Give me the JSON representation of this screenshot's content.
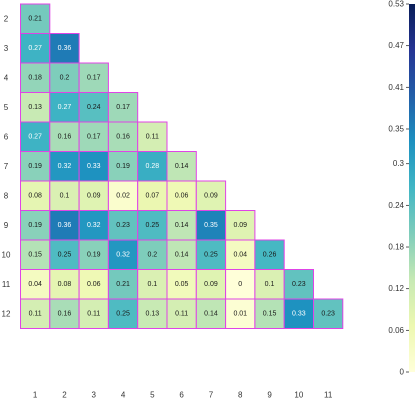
{
  "chart_data": {
    "type": "heatmap",
    "title": "",
    "xlabel": "",
    "ylabel": "",
    "x_categories": [
      "1",
      "2",
      "3",
      "4",
      "5",
      "6",
      "7",
      "8",
      "9",
      "10",
      "11"
    ],
    "y_categories": [
      "2",
      "3",
      "4",
      "5",
      "6",
      "7",
      "8",
      "9",
      "10",
      "11",
      "12"
    ],
    "rows": [
      {
        "y": "2",
        "values": [
          0.21
        ]
      },
      {
        "y": "3",
        "values": [
          0.27,
          0.36
        ]
      },
      {
        "y": "4",
        "values": [
          0.18,
          0.2,
          0.17
        ]
      },
      {
        "y": "5",
        "values": [
          0.13,
          0.27,
          0.24,
          0.17
        ]
      },
      {
        "y": "6",
        "values": [
          0.27,
          0.16,
          0.17,
          0.16,
          0.11
        ]
      },
      {
        "y": "7",
        "values": [
          0.19,
          0.32,
          0.33,
          0.19,
          0.28,
          0.14
        ]
      },
      {
        "y": "8",
        "values": [
          0.08,
          0.1,
          0.09,
          0.02,
          0.07,
          0.06,
          0.09
        ]
      },
      {
        "y": "9",
        "values": [
          0.19,
          0.36,
          0.32,
          0.23,
          0.25,
          0.14,
          0.35,
          0.09
        ]
      },
      {
        "y": "10",
        "values": [
          0.15,
          0.25,
          0.19,
          0.32,
          0.2,
          0.14,
          0.25,
          0.04,
          0.26
        ]
      },
      {
        "y": "11",
        "values": [
          0.04,
          0.08,
          0.06,
          0.21,
          0.1,
          0.05,
          0.09,
          0,
          0.1,
          0.23
        ]
      },
      {
        "y": "12",
        "values": [
          0.11,
          0.16,
          0.11,
          0.25,
          0.13,
          0.11,
          0.14,
          0.01,
          0.15,
          0.33,
          0.23
        ]
      }
    ],
    "colorbar": {
      "min": 0,
      "max": 0.53,
      "ticks": [
        "0",
        "0.06",
        "0.12",
        "0.18",
        "0.24",
        "0.3",
        "0.35",
        "0.41",
        "0.47",
        "0.53"
      ],
      "colors": [
        "#ffffd9",
        "#edf8b1",
        "#c7e9b4",
        "#7fcdbb",
        "#41b6c4",
        "#1d91c0",
        "#225ea8",
        "#253494",
        "#081d58"
      ]
    },
    "cell_border_color": "#e043e6",
    "legend": "right"
  }
}
